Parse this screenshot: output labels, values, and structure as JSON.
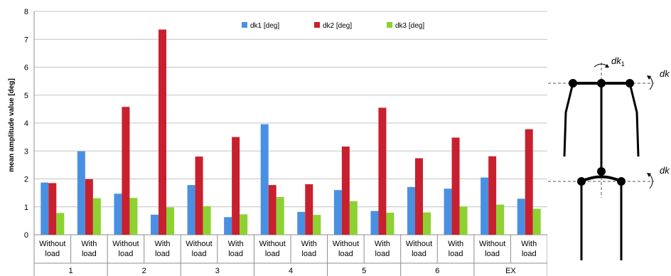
{
  "chart_data": {
    "type": "bar",
    "ylabel": "mean amplitude value [deg]",
    "ylim": [
      0,
      8
    ],
    "yticks": [
      0,
      1,
      2,
      3,
      4,
      5,
      6,
      7,
      8
    ],
    "grid": true,
    "legend_position": "top-center",
    "groups": [
      "1",
      "2",
      "3",
      "4",
      "5",
      "6",
      "EX"
    ],
    "subcategory_lines": [
      [
        "Without",
        "load"
      ],
      [
        "With",
        "load"
      ]
    ],
    "series": [
      {
        "name": "dk1 [deg]",
        "color": "#4a90e2",
        "values": [
          1.87,
          2.99,
          1.47,
          0.72,
          1.78,
          0.63,
          3.96,
          0.82,
          1.6,
          0.85,
          1.71,
          1.65,
          2.05,
          1.29
        ]
      },
      {
        "name": "dk2 [deg]",
        "color": "#c8202f",
        "values": [
          1.85,
          1.99,
          4.58,
          7.35,
          2.8,
          3.5,
          1.78,
          1.81,
          3.16,
          4.55,
          2.74,
          3.48,
          2.81,
          3.78
        ]
      },
      {
        "name": "dk3 [deg]",
        "color": "#8cd230",
        "values": [
          0.78,
          1.31,
          1.32,
          0.98,
          1.02,
          0.73,
          1.35,
          0.71,
          1.2,
          0.79,
          0.8,
          1.01,
          1.08,
          0.93
        ]
      }
    ]
  },
  "diagram": {
    "label_dk": "dk",
    "label_sub_1": "1"
  }
}
